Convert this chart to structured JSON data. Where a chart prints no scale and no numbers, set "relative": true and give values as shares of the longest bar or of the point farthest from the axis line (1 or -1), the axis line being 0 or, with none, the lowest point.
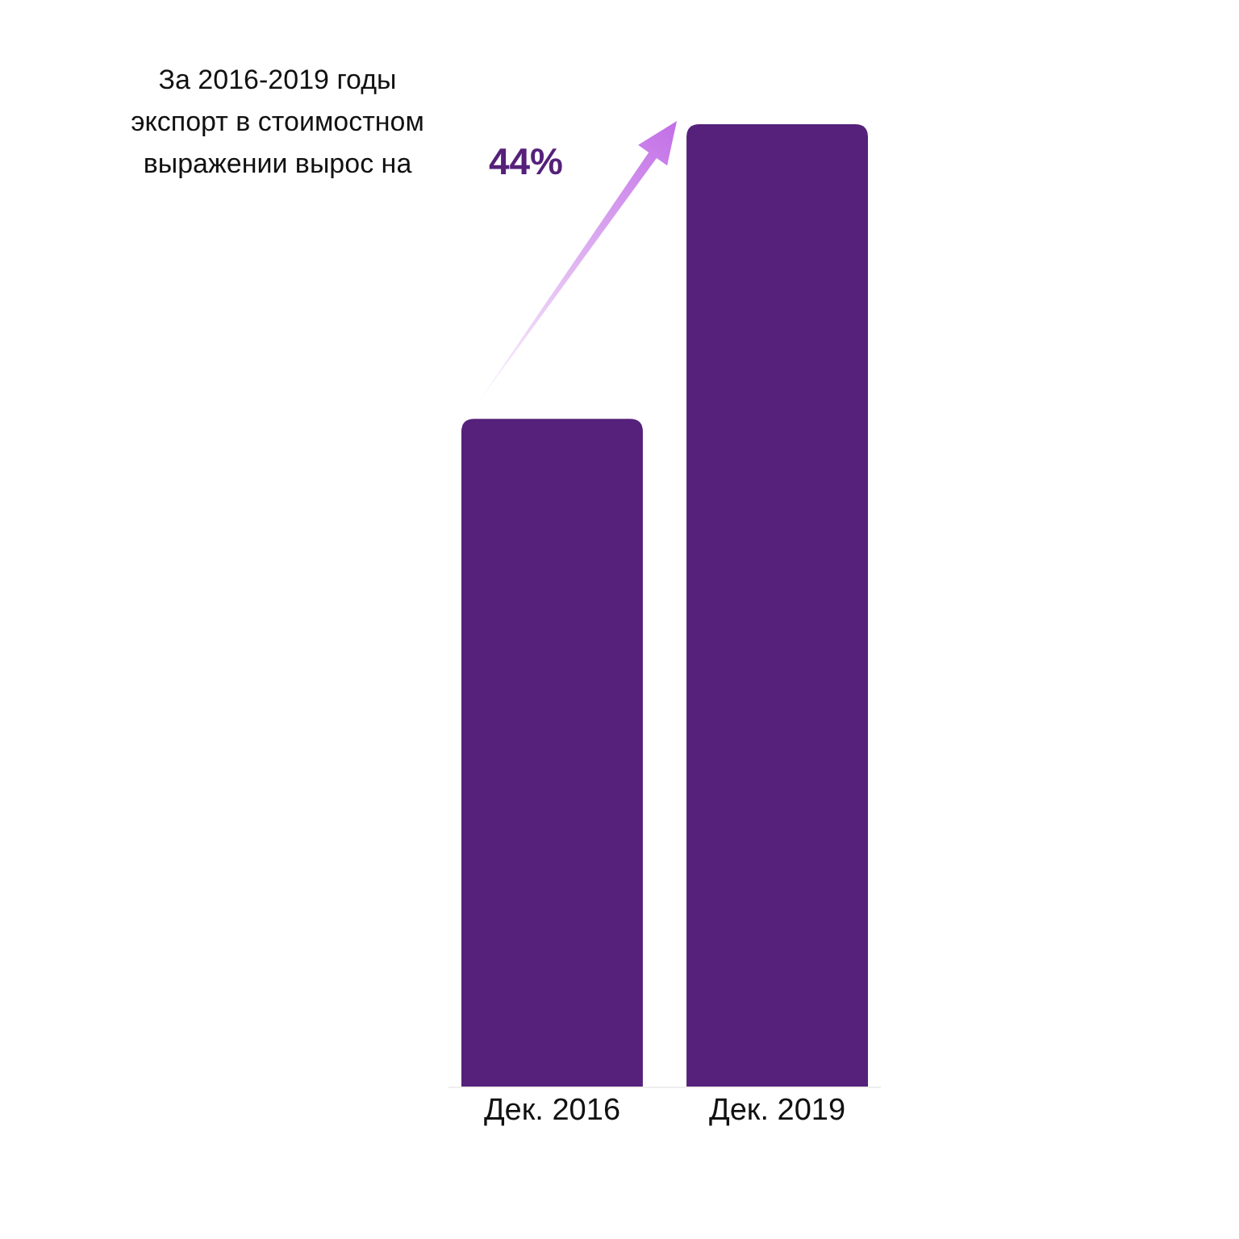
{
  "chart_data": {
    "type": "bar",
    "relative": true,
    "categories": [
      "Дек. 2016",
      "Дек. 2019"
    ],
    "values": [
      0.694,
      1
    ],
    "color": "#55217a",
    "annotations": [
      "За 2016-2019 годы экспорт в стоимостном выражении вырос на",
      "44%"
    ]
  }
}
